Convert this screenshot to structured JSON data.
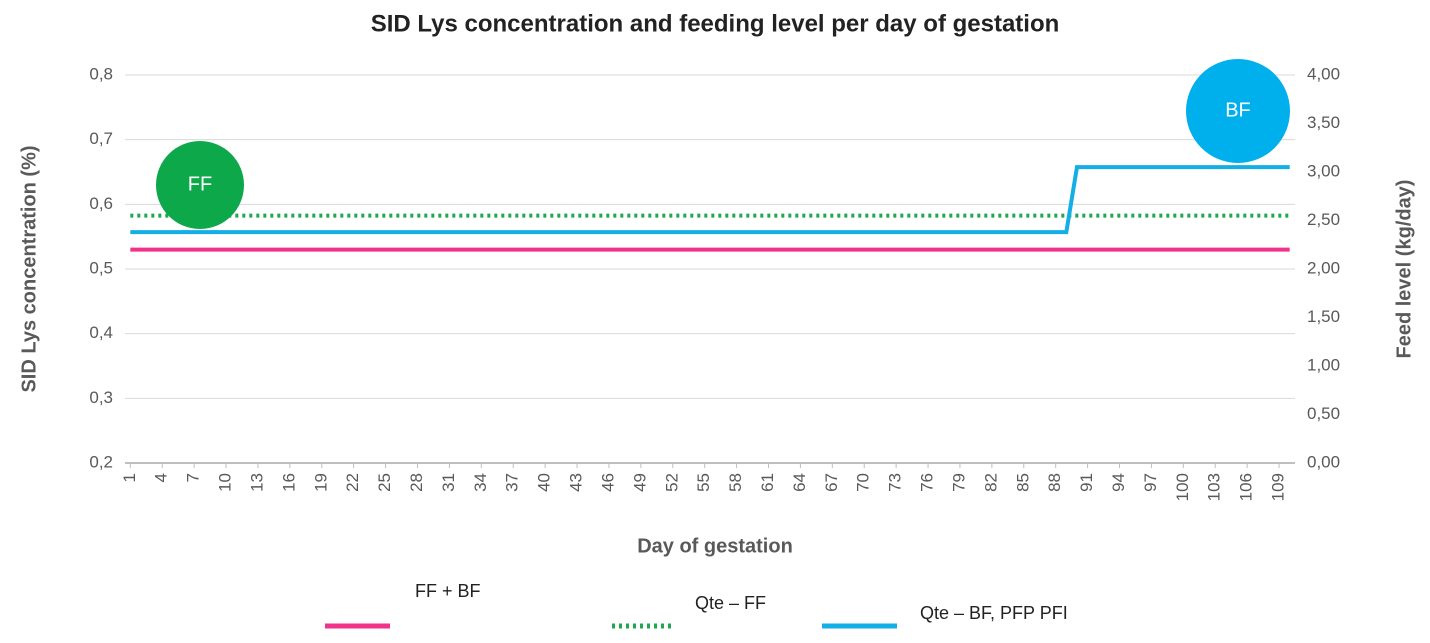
{
  "chart_data": {
    "type": "line",
    "title": "SID Lys concentration and feeding level per day of gestation",
    "x_label": "Day of gestation",
    "y_label": "SID Lys concentration (%)",
    "y2_label": "Feed level (kg/day)",
    "x": [
      1,
      89,
      90,
      110
    ],
    "xlim": [
      0.5,
      110.5
    ],
    "xticks": [
      1,
      4,
      7,
      10,
      13,
      16,
      19,
      22,
      25,
      28,
      31,
      34,
      37,
      40,
      43,
      46,
      49,
      52,
      55,
      58,
      61,
      64,
      67,
      70,
      73,
      76,
      79,
      82,
      85,
      88,
      91,
      94,
      97,
      100,
      103,
      106,
      109
    ],
    "ylim": [
      0.2,
      0.8
    ],
    "yticks": [
      {
        "value": 0.2,
        "label": "0,2"
      },
      {
        "value": 0.3,
        "label": "0,3"
      },
      {
        "value": 0.4,
        "label": "0,4"
      },
      {
        "value": 0.5,
        "label": "0,5"
      },
      {
        "value": 0.6,
        "label": "0,6"
      },
      {
        "value": 0.7,
        "label": "0,7"
      },
      {
        "value": 0.8,
        "label": "0,8"
      }
    ],
    "y2lim": [
      0,
      4
    ],
    "y2ticks": [
      {
        "value": 0,
        "label": "0,00"
      },
      {
        "value": 0.5,
        "label": "0,50"
      },
      {
        "value": 1,
        "label": "1,00"
      },
      {
        "value": 1.5,
        "label": "1,50"
      },
      {
        "value": 2,
        "label": "2,00"
      },
      {
        "value": 2.5,
        "label": "2,50"
      },
      {
        "value": 3,
        "label": "3,00"
      },
      {
        "value": 3.5,
        "label": "3,50"
      },
      {
        "value": 4,
        "label": "4,00"
      }
    ],
    "grid": true,
    "legend": "bottom",
    "series": [
      {
        "name": "FF + BF",
        "color": "#f0338a",
        "dash": "solid",
        "values": [
          0.53,
          0.53,
          0.53,
          0.53
        ]
      },
      {
        "name": "Qte – FF",
        "color": "#1fa84f",
        "dash": "dotted",
        "axis": "y2",
        "values": [
          2.55,
          2.55,
          2.55,
          2.55
        ]
      },
      {
        "name": "Qte – BF, PFP PFI",
        "color": "#14aee6",
        "dash": "solid",
        "axis": "y2",
        "values": [
          2.38,
          2.38,
          3.05,
          3.05
        ]
      }
    ],
    "annotations": [
      {
        "text": "FF",
        "color": "#0ca84a"
      },
      {
        "text": "BF",
        "color": "#00b0ec"
      }
    ]
  }
}
